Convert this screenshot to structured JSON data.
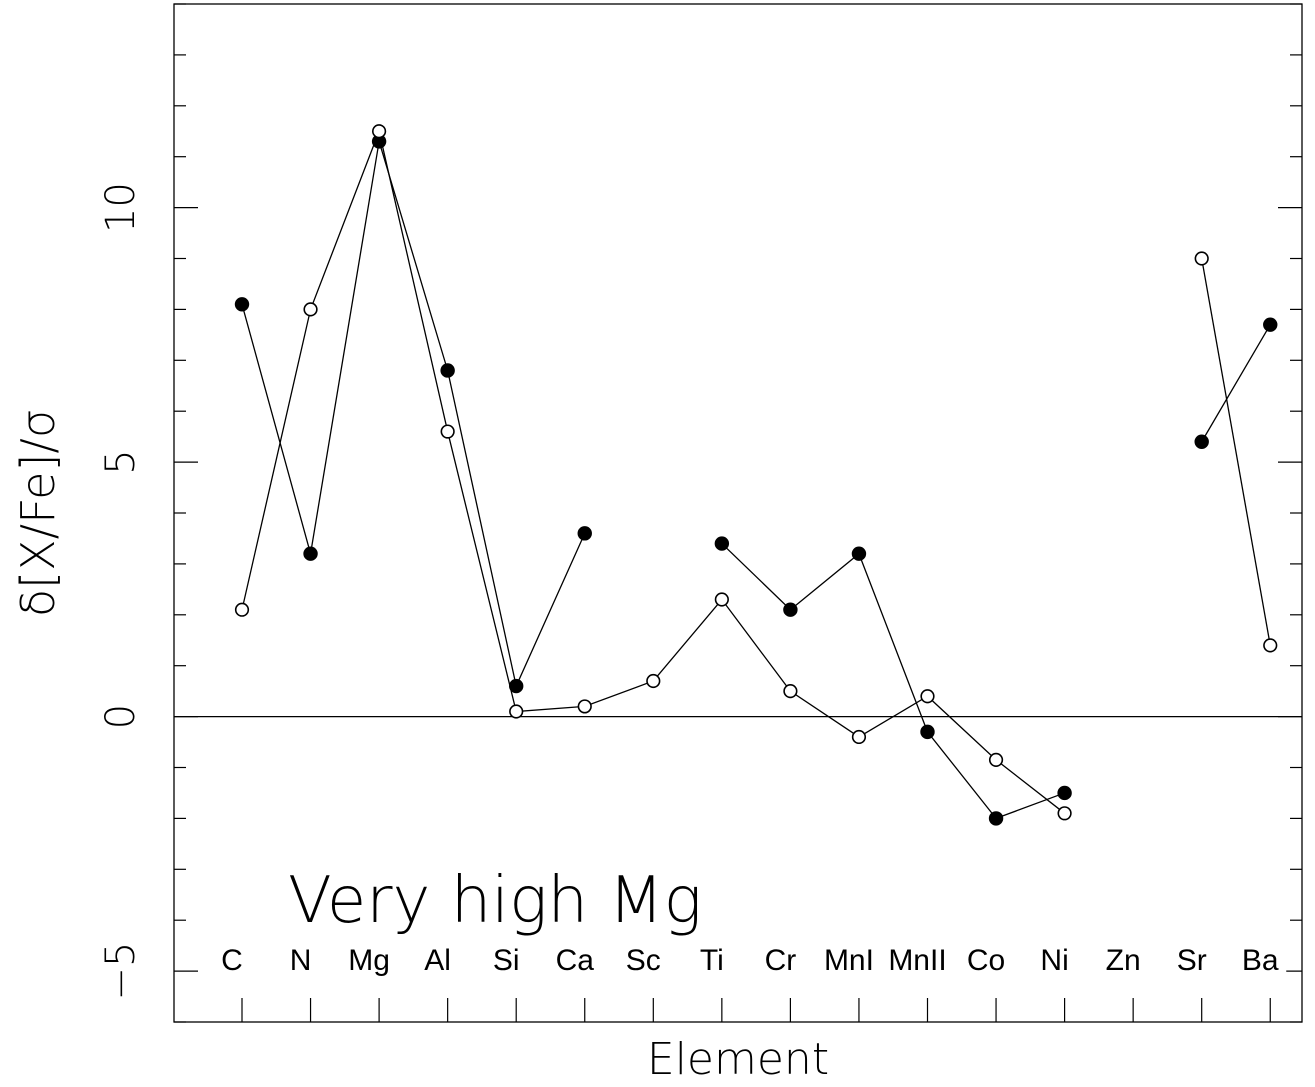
{
  "chart_data": {
    "type": "line",
    "title": "",
    "xlabel": "Element",
    "ylabel": "δ[X/Fe]/σ",
    "annotation": "Very high Mg",
    "categories": [
      "C",
      "N",
      "Mg",
      "Al",
      "Si",
      "Ca",
      "Sc",
      "Ti",
      "Cr",
      "MnI",
      "MnII",
      "Co",
      "Ni",
      "Zn",
      "Sr",
      "Ba"
    ],
    "ylim": [
      -6,
      14
    ],
    "yticks": [
      -5,
      0,
      5,
      10
    ],
    "ytick_labels": [
      "−5",
      "0",
      "5",
      "10"
    ],
    "zero_line": true,
    "grid": false,
    "series": [
      {
        "marker": "filled-circle",
        "values": [
          8.1,
          3.2,
          11.3,
          6.8,
          0.6,
          3.6,
          null,
          3.4,
          2.1,
          3.2,
          -0.3,
          -2.0,
          -1.5,
          null,
          5.4,
          7.7
        ]
      },
      {
        "marker": "open-circle",
        "values": [
          2.1,
          8.0,
          11.5,
          5.6,
          0.1,
          0.2,
          0.7,
          2.3,
          0.5,
          -0.4,
          0.4,
          -0.85,
          -1.9,
          null,
          9.0,
          1.4
        ]
      }
    ]
  }
}
